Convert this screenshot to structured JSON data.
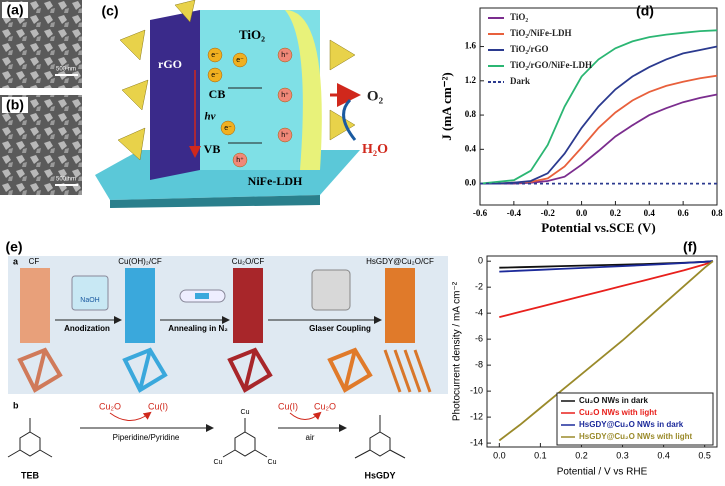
{
  "panels": {
    "a": {
      "label": "(a)",
      "scale": "500 nm"
    },
    "b": {
      "label": "(b)",
      "scale": "500 nm"
    },
    "c": {
      "label": "(c)",
      "tio2": "TiO₂",
      "rgo": "rGO",
      "cb": "CB",
      "hv": "hν",
      "vb": "VB",
      "o2": "O₂",
      "h2o": "H₂O",
      "nife": "NiFe-LDH",
      "electron": "e⁻",
      "hole": "h⁺"
    },
    "d": {
      "label": "(d)"
    },
    "e": {
      "label": "(e)",
      "sub_a": "a",
      "cf": "CF",
      "naoh": "NaOH",
      "cuoh": "Cu(OH)₂/CF",
      "anod": "Anodization",
      "cu2ocf": "Cu₂O/CF",
      "anneal": "Annealing in N₂",
      "hsgdycf": "HsGDY@Cu₂O/CF",
      "glaser": "Glaser Coupling",
      "sub_b": "b",
      "teb": "TEB",
      "cu2o_1": "Cu₂O",
      "cui_1": "Cu(I)",
      "solvent": "Piperidine/Pyridine",
      "cu": "Cu",
      "cui_2": "Cu(I)",
      "cu2o_2": "Cu₂O",
      "air": "air",
      "hsgdy": "HsGDY"
    },
    "f": {
      "label": "(f)"
    }
  },
  "chart_data": [
    {
      "type": "line",
      "xlabel": "Potential vs.SCE (V)",
      "ylabel": "J (mA cm⁻²)",
      "x": [
        -0.6,
        -0.5,
        -0.4,
        -0.3,
        -0.2,
        -0.1,
        0.0,
        0.1,
        0.2,
        0.3,
        0.4,
        0.5,
        0.6,
        0.7,
        0.8
      ],
      "series": [
        {
          "name": "TiO₂",
          "color": "#7b2d8e",
          "values": [
            0,
            0,
            0,
            0.01,
            0.03,
            0.08,
            0.22,
            0.38,
            0.55,
            0.68,
            0.8,
            0.88,
            0.95,
            1.0,
            1.04
          ]
        },
        {
          "name": "TiO₂/NiFe-LDH",
          "color": "#e8603c",
          "values": [
            0,
            0,
            0.01,
            0.02,
            0.06,
            0.2,
            0.42,
            0.65,
            0.83,
            0.97,
            1.07,
            1.14,
            1.19,
            1.23,
            1.26
          ]
        },
        {
          "name": "TiO₂/rGO",
          "color": "#2b3a8f",
          "values": [
            0,
            0,
            0.01,
            0.03,
            0.12,
            0.35,
            0.65,
            0.9,
            1.1,
            1.25,
            1.36,
            1.45,
            1.52,
            1.56,
            1.6
          ]
        },
        {
          "name": "TiO₂/rGO/NiFe-LDH",
          "color": "#2bb673",
          "values": [
            0,
            0.02,
            0.04,
            0.15,
            0.45,
            0.9,
            1.25,
            1.45,
            1.58,
            1.66,
            1.71,
            1.74,
            1.76,
            1.78,
            1.79
          ]
        },
        {
          "name": "Dark",
          "color": "#2b3a8f",
          "line_style": "dashed",
          "values": [
            0,
            0,
            0,
            0,
            0,
            0,
            0,
            0,
            0,
            0,
            0,
            0,
            0,
            0,
            0
          ]
        }
      ],
      "xlim": [
        -0.6,
        0.8
      ],
      "ylim": [
        -0.25,
        2.05
      ],
      "xticks": [
        -0.6,
        -0.4,
        -0.2,
        {
          "value": 0,
          "label": "0.0"
        },
        0.2,
        0.4,
        0.6,
        0.8
      ],
      "yticks": [
        {
          "value": 0,
          "label": "0.0"
        },
        0.4,
        0.8,
        1.2,
        1.6
      ],
      "legend": "upper left"
    },
    {
      "type": "line",
      "xlabel": "Potential / V vs RHE",
      "ylabel": "Photocurrent density / mA cm⁻²",
      "x": [
        0.0,
        0.05,
        0.1,
        0.15,
        0.2,
        0.25,
        0.3,
        0.35,
        0.4,
        0.45,
        0.5,
        0.52
      ],
      "series": [
        {
          "name": "Cu₂O NWs in dark",
          "color": "#111111",
          "values": [
            -0.5,
            -0.46,
            -0.42,
            -0.38,
            -0.34,
            -0.3,
            -0.26,
            -0.22,
            -0.17,
            -0.12,
            -0.05,
            0
          ]
        },
        {
          "name": "Cu₂O NWs with light",
          "color": "#e8201c",
          "values": [
            -4.3,
            -3.9,
            -3.5,
            -3.1,
            -2.7,
            -2.3,
            -1.9,
            -1.5,
            -1.1,
            -0.7,
            -0.25,
            0
          ]
        },
        {
          "name": "HsGDY@Cu₂O NWs in dark",
          "color": "#1c2a9a",
          "values": [
            -0.8,
            -0.73,
            -0.66,
            -0.59,
            -0.52,
            -0.45,
            -0.38,
            -0.3,
            -0.22,
            -0.14,
            -0.05,
            0
          ]
        },
        {
          "name": "HsGDY@Cu₂O NWs with light",
          "color": "#9a8a2a",
          "values": [
            -13.8,
            -12.6,
            -11.3,
            -10.0,
            -8.7,
            -7.4,
            -6.1,
            -4.7,
            -3.3,
            -1.9,
            -0.5,
            0
          ]
        }
      ],
      "xlim": [
        -0.03,
        0.53
      ],
      "ylim": [
        -14.3,
        0.4
      ],
      "xticks": [
        {
          "value": 0,
          "label": "0.0"
        },
        0.1,
        0.2,
        0.3,
        0.4,
        0.5
      ],
      "yticks": [
        -14,
        -12,
        -10,
        -8,
        -6,
        -4,
        -2,
        0
      ],
      "legend": "lower right"
    }
  ]
}
